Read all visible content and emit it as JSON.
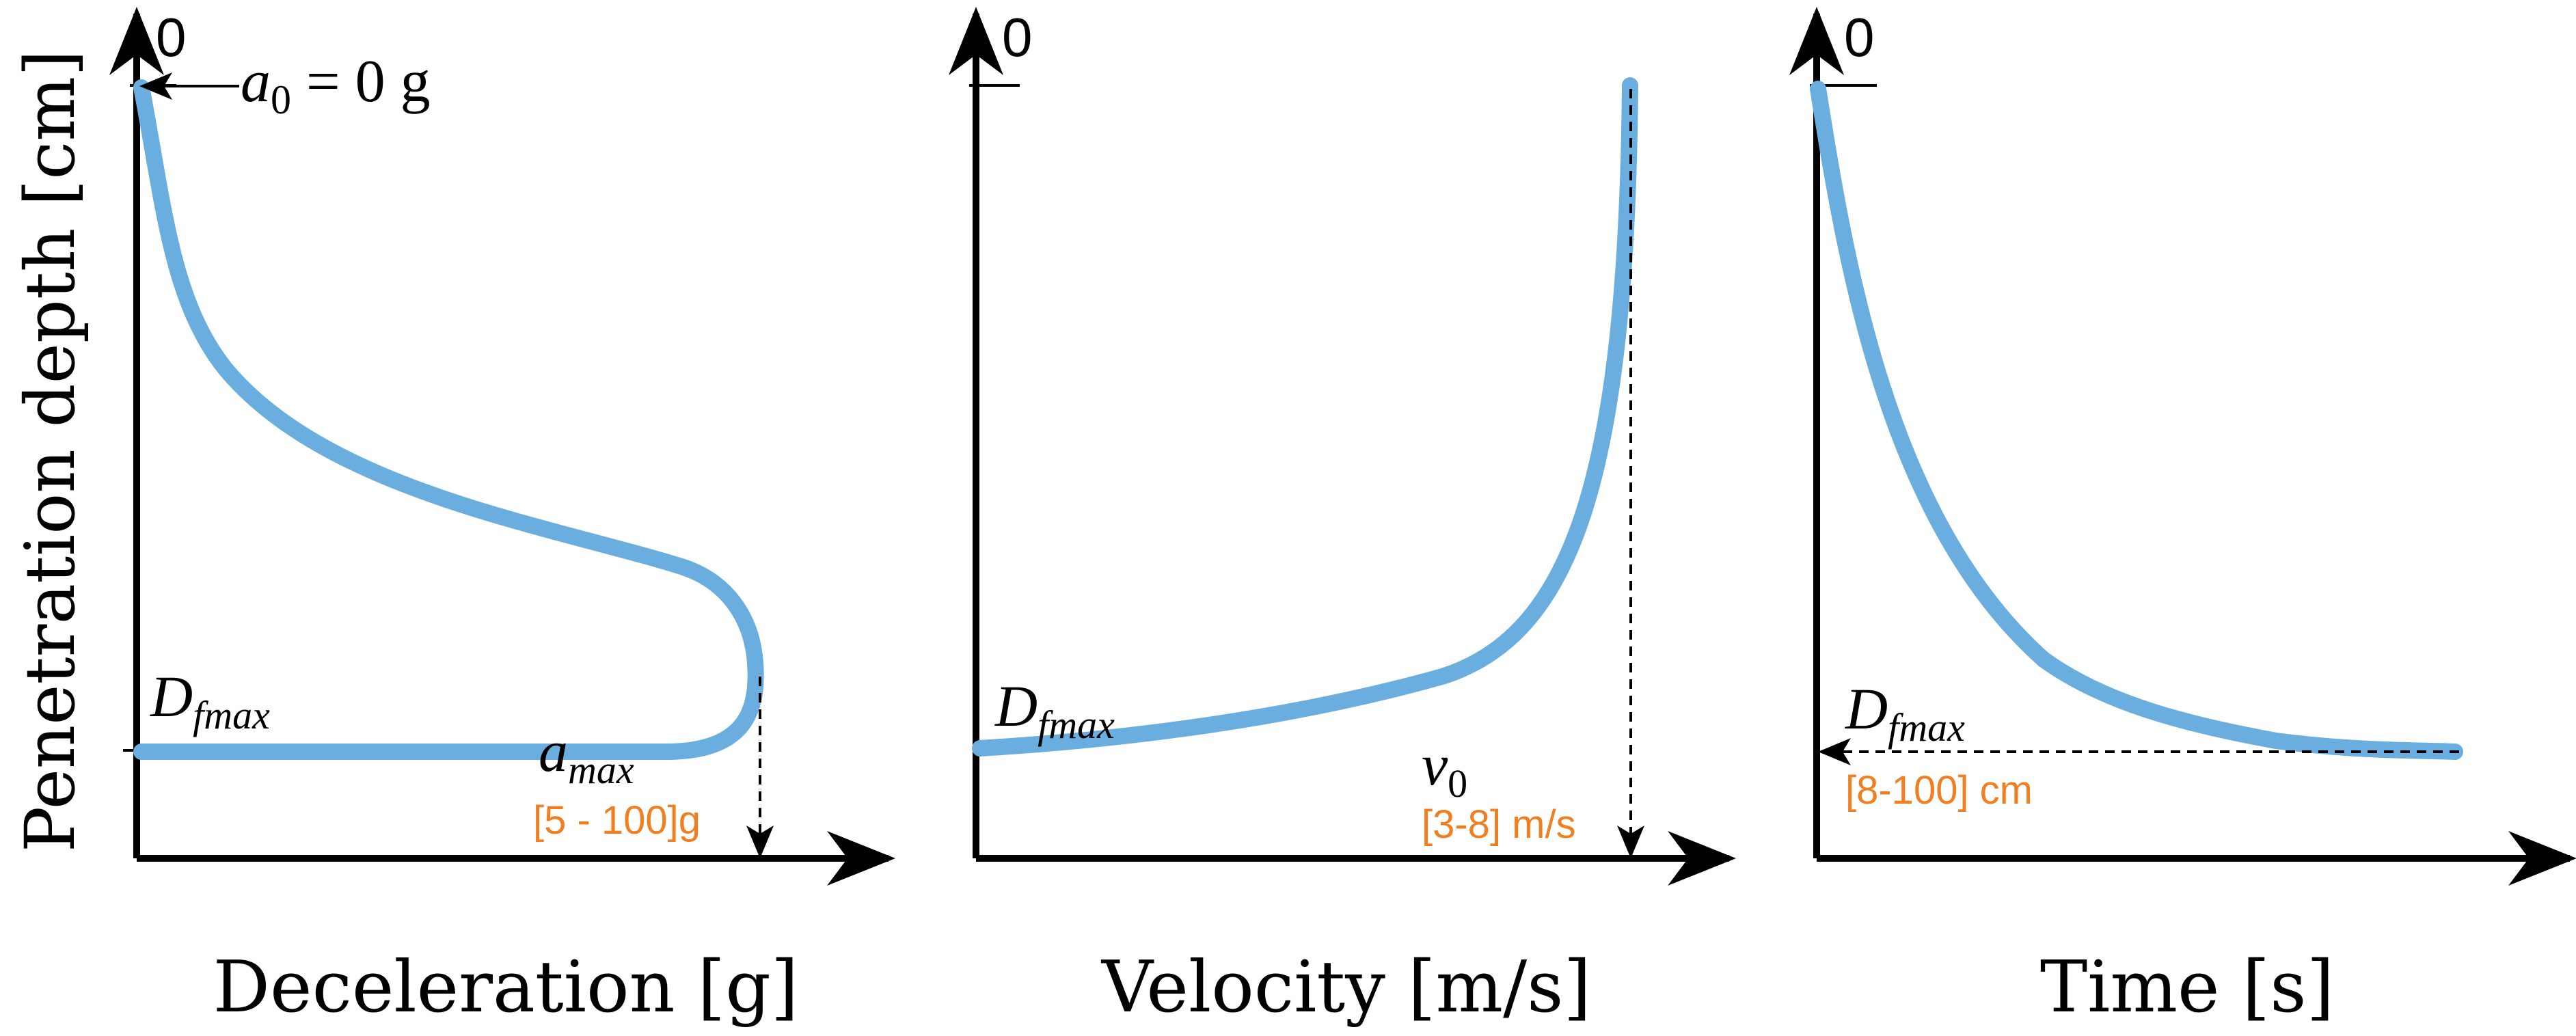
{
  "y_axis_label": "Penetration depth [cm]",
  "colors": {
    "curve": "#6aaee0",
    "range": "#f07f22",
    "axis": "#000000"
  },
  "panels": [
    {
      "id": "deceleration",
      "x_label": "Deceleration [g]",
      "zero_label": "0",
      "start_annotation": {
        "sym": "a",
        "sub": "0",
        "rest": " = 0 g"
      },
      "dfmax": {
        "sym": "D",
        "sub": "fmax"
      },
      "value_label": {
        "sym": "a",
        "sub": "max"
      },
      "range_label": "[5 - 100]g"
    },
    {
      "id": "velocity",
      "x_label": "Velocity [m/s]",
      "zero_label": "0",
      "dfmax": {
        "sym": "D",
        "sub": "fmax"
      },
      "value_label": {
        "sym": "v",
        "sub": "0"
      },
      "range_label": "[3-8] m/s"
    },
    {
      "id": "time",
      "x_label": "Time [s]",
      "zero_label": "0",
      "dfmax": {
        "sym": "D",
        "sub": "fmax"
      },
      "range_label": "[8-100] cm"
    }
  ]
}
